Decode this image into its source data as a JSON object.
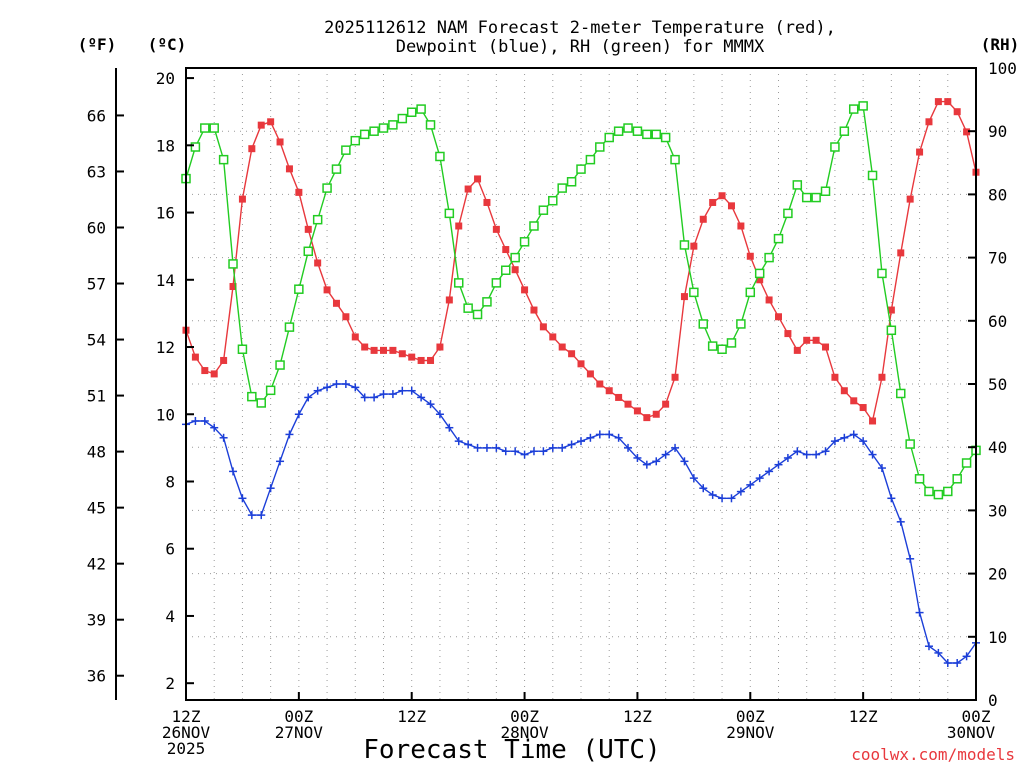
{
  "chart_data": {
    "type": "line",
    "title_line1": "2025112612 NAM Forecast 2-meter Temperature (red),",
    "title_line2": "Dewpoint (blue), RH (green) for MMMX",
    "units": {
      "f": "(ºF)",
      "c": "(ºC)",
      "rh": "(RH)"
    },
    "xlabel": "Forecast Time (UTC)",
    "credit": "coolwx.com/models",
    "x_range_hours": [
      0,
      84
    ],
    "x_ticks": [
      {
        "hour": 0,
        "time": "12Z",
        "date": "26NOV",
        "year": "2025"
      },
      {
        "hour": 12,
        "time": "00Z",
        "date": "27NOV",
        "year": ""
      },
      {
        "hour": 24,
        "time": "12Z",
        "date": "",
        "year": ""
      },
      {
        "hour": 36,
        "time": "00Z",
        "date": "28NOV",
        "year": ""
      },
      {
        "hour": 48,
        "time": "12Z",
        "date": "",
        "year": ""
      },
      {
        "hour": 60,
        "time": "00Z",
        "date": "29NOV",
        "year": ""
      },
      {
        "hour": 72,
        "time": "12Z",
        "date": "",
        "year": ""
      },
      {
        "hour": 84,
        "time": "00Z",
        "date": "30NOV",
        "year": ""
      }
    ],
    "y_c": {
      "ylim": [
        1.5,
        20.3
      ],
      "ticks": [
        "2",
        "4",
        "6",
        "8",
        "10",
        "12",
        "14",
        "16",
        "18",
        "20"
      ]
    },
    "y_f": {
      "ticks": [
        "36",
        "39",
        "42",
        "45",
        "48",
        "51",
        "54",
        "57",
        "60",
        "63",
        "66"
      ]
    },
    "y_rh": {
      "ylim": [
        0,
        100
      ],
      "ticks": [
        "0",
        "10",
        "20",
        "30",
        "40",
        "50",
        "60",
        "70",
        "80",
        "90",
        "100"
      ]
    },
    "series": [
      {
        "name": "Temperature",
        "unit": "C",
        "color": "#e8383d",
        "marker": "filled-square",
        "x": [
          0,
          1,
          2,
          3,
          4,
          5,
          6,
          7,
          8,
          9,
          10,
          11,
          12,
          13,
          14,
          15,
          16,
          17,
          18,
          19,
          20,
          21,
          22,
          23,
          24,
          25,
          26,
          27,
          28,
          29,
          30,
          31,
          32,
          33,
          34,
          35,
          36,
          37,
          38,
          39,
          40,
          41,
          42,
          43,
          44,
          45,
          46,
          47,
          48,
          49,
          50,
          51,
          52,
          53,
          54,
          55,
          56,
          57,
          58,
          59,
          60,
          61,
          62,
          63,
          64,
          65,
          66,
          67,
          68,
          69,
          70,
          71,
          72,
          73,
          74,
          75,
          76,
          77,
          78,
          79,
          80,
          81,
          82,
          83,
          84
        ],
        "values": [
          12.5,
          11.7,
          11.3,
          11.2,
          11.6,
          13.8,
          16.4,
          17.9,
          18.6,
          18.7,
          18.1,
          17.3,
          16.6,
          15.5,
          14.5,
          13.7,
          13.3,
          12.9,
          12.3,
          12.0,
          11.9,
          11.9,
          11.9,
          11.8,
          11.7,
          11.6,
          11.6,
          12.0,
          13.4,
          15.6,
          16.7,
          17.0,
          16.3,
          15.5,
          14.9,
          14.3,
          13.7,
          13.1,
          12.6,
          12.3,
          12.0,
          11.8,
          11.5,
          11.2,
          10.9,
          10.7,
          10.5,
          10.3,
          10.1,
          9.9,
          10.0,
          10.3,
          11.1,
          13.5,
          15.0,
          15.8,
          16.3,
          16.5,
          16.2,
          15.6,
          14.7,
          14.0,
          13.4,
          12.9,
          12.4,
          11.9,
          12.2,
          12.2,
          12.0,
          11.1,
          10.7,
          10.4,
          10.2,
          9.8,
          11.1,
          13.1,
          14.8,
          16.4,
          17.8,
          18.7,
          19.3,
          19.3,
          19.0,
          18.4,
          17.2
        ]
      },
      {
        "name": "Dewpoint",
        "unit": "C",
        "color": "#1c3fd8",
        "marker": "plus",
        "x": [
          0,
          1,
          2,
          3,
          4,
          5,
          6,
          7,
          8,
          9,
          10,
          11,
          12,
          13,
          14,
          15,
          16,
          17,
          18,
          19,
          20,
          21,
          22,
          23,
          24,
          25,
          26,
          27,
          28,
          29,
          30,
          31,
          32,
          33,
          34,
          35,
          36,
          37,
          38,
          39,
          40,
          41,
          42,
          43,
          44,
          45,
          46,
          47,
          48,
          49,
          50,
          51,
          52,
          53,
          54,
          55,
          56,
          57,
          58,
          59,
          60,
          61,
          62,
          63,
          64,
          65,
          66,
          67,
          68,
          69,
          70,
          71,
          72,
          73,
          74,
          75,
          76,
          77,
          78,
          79,
          80,
          81,
          82,
          83,
          84
        ],
        "values": [
          9.7,
          9.8,
          9.8,
          9.6,
          9.3,
          8.3,
          7.5,
          7.0,
          7.0,
          7.8,
          8.6,
          9.4,
          10.0,
          10.5,
          10.7,
          10.8,
          10.9,
          10.9,
          10.8,
          10.5,
          10.5,
          10.6,
          10.6,
          10.7,
          10.7,
          10.5,
          10.3,
          10.0,
          9.6,
          9.2,
          9.1,
          9.0,
          9.0,
          9.0,
          8.9,
          8.9,
          8.8,
          8.9,
          8.9,
          9.0,
          9.0,
          9.1,
          9.2,
          9.3,
          9.4,
          9.4,
          9.3,
          9.0,
          8.7,
          8.5,
          8.6,
          8.8,
          9.0,
          8.6,
          8.1,
          7.8,
          7.6,
          7.5,
          7.5,
          7.7,
          7.9,
          8.1,
          8.3,
          8.5,
          8.7,
          8.9,
          8.8,
          8.8,
          8.9,
          9.2,
          9.3,
          9.4,
          9.2,
          8.8,
          8.4,
          7.5,
          6.8,
          5.7,
          4.1,
          3.1,
          2.9,
          2.6,
          2.6,
          2.8,
          3.2
        ]
      },
      {
        "name": "RH",
        "unit": "%",
        "color": "#22cc22",
        "marker": "open-square",
        "x": [
          0,
          1,
          2,
          3,
          4,
          5,
          6,
          7,
          8,
          9,
          10,
          11,
          12,
          13,
          14,
          15,
          16,
          17,
          18,
          19,
          20,
          21,
          22,
          23,
          24,
          25,
          26,
          27,
          28,
          29,
          30,
          31,
          32,
          33,
          34,
          35,
          36,
          37,
          38,
          39,
          40,
          41,
          42,
          43,
          44,
          45,
          46,
          47,
          48,
          49,
          50,
          51,
          52,
          53,
          54,
          55,
          56,
          57,
          58,
          59,
          60,
          61,
          62,
          63,
          64,
          65,
          66,
          67,
          68,
          69,
          70,
          71,
          72,
          73,
          74,
          75,
          76,
          77,
          78,
          79,
          80,
          81,
          82,
          83,
          84
        ],
        "values": [
          82.5,
          87.5,
          90.5,
          90.5,
          85.5,
          69,
          55.5,
          48,
          47,
          49,
          53,
          59,
          65,
          71,
          76,
          81,
          84,
          87,
          88.5,
          89.5,
          90,
          90.5,
          91,
          92,
          93,
          93.5,
          91,
          86,
          77,
          66,
          62,
          61,
          63,
          66,
          68,
          70,
          72.5,
          75,
          77.5,
          79,
          81,
          82,
          84,
          85.5,
          87.5,
          89,
          90,
          90.5,
          90,
          89.5,
          89.5,
          89,
          85.5,
          72,
          64.5,
          59.5,
          56,
          55.5,
          56.5,
          59.5,
          64.5,
          67.5,
          70,
          73,
          77,
          81.5,
          79.5,
          79.5,
          80.5,
          87.5,
          90,
          93.5,
          94,
          83,
          67.5,
          58.5,
          48.5,
          40.5,
          35,
          33,
          32.5,
          33,
          35,
          37.5,
          39.5
        ]
      }
    ]
  }
}
